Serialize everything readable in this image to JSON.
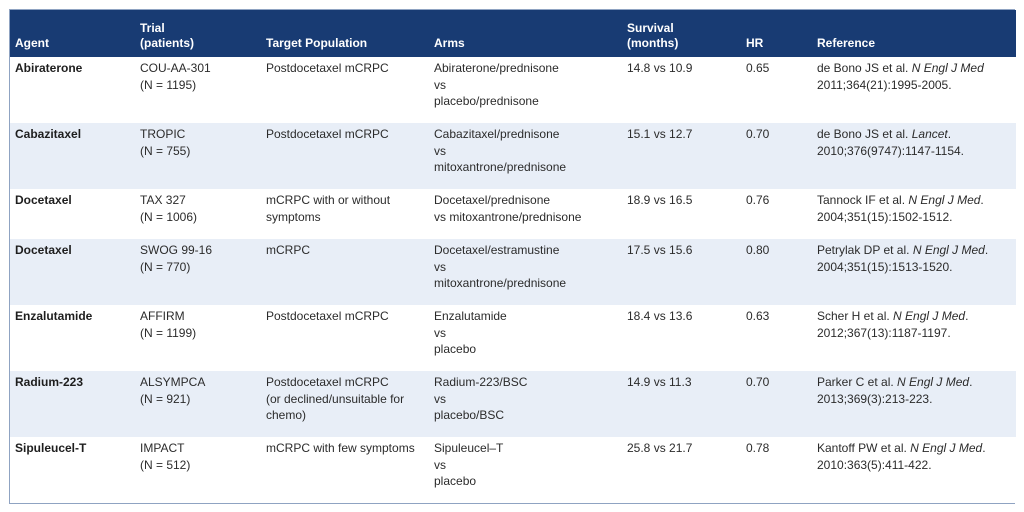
{
  "table": {
    "headers": [
      "Agent",
      "Trial\n(patients)",
      "Target Population",
      "Arms",
      "Survival\n(months)",
      "HR",
      "Reference"
    ],
    "rows": [
      {
        "agent": "Abiraterone",
        "trial": "COU-AA-301\n(N = 1195)",
        "population": "Postdocetaxel mCRPC",
        "arms": "Abiraterone/prednisone\nvs\nplacebo/prednisone",
        "survival": "14.8 vs 10.9",
        "hr": "0.65",
        "ref_author": "de Bono JS et al. ",
        "ref_journal": "N Engl J Med",
        "ref_citation": "2011;364(21):1995-2005."
      },
      {
        "agent": "Cabazitaxel",
        "trial": "TROPIC\n(N = 755)",
        "population": "Postdocetaxel  mCRPC",
        "arms": "Cabazitaxel/prednisone\nvs\nmitoxantrone/prednisone",
        "survival": "15.1 vs 12.7",
        "hr": "0.70",
        "ref_author": "de Bono JS et al. ",
        "ref_journal": "Lancet",
        "ref_citation": ".\n2010;376(9747):1147-1154."
      },
      {
        "agent": "Docetaxel",
        "trial": "TAX 327\n(N = 1006)",
        "population": "mCRPC with or without\nsymptoms",
        "arms": "Docetaxel/prednisone\nvs mitoxantrone/prednisone",
        "survival": "18.9 vs 16.5",
        "hr": "0.76",
        "ref_author": "Tannock IF et al.  ",
        "ref_journal": "N Engl J Med",
        "ref_citation": ".\n2004;351(15):1502-1512."
      },
      {
        "agent": "Docetaxel",
        "trial": "SWOG 99-16\n(N = 770)",
        "population": "mCRPC",
        "arms": "Docetaxel/estramustine\nvs\nmitoxantrone/prednisone",
        "survival": "17.5 vs 15.6",
        "hr": "0.80",
        "ref_author": "Petrylak DP et al. ",
        "ref_journal": "N Engl J Med",
        "ref_citation": ".\n2004;351(15):1513-1520."
      },
      {
        "agent": "Enzalutamide",
        "trial": "AFFIRM\n(N = 1199)",
        "population": "Postdocetaxel mCRPC",
        "arms": "Enzalutamide\nvs\nplacebo",
        "survival": "18.4 vs 13.6",
        "hr": "0.63",
        "ref_author": "Scher H et al. ",
        "ref_journal": "N Engl J Med",
        "ref_citation": ".\n2012;367(13):1187-1197."
      },
      {
        "agent": "Radium-223",
        "trial": "ALSYMPCA\n(N = 921)",
        "population": "Postdocetaxel mCRPC\n(or declined/unsuitable for\nchemo)",
        "arms": "Radium-223/BSC\nvs\nplacebo/BSC",
        "survival": "14.9 vs 11.3",
        "hr": "0.70",
        "ref_author": "Parker C et al.  ",
        "ref_journal": "N Engl J Med",
        "ref_citation": ".\n2013;369(3):213-223."
      },
      {
        "agent": "Sipuleucel-T",
        "trial": "IMPACT\n(N = 512)",
        "population": "mCRPC with few symptoms",
        "arms": "Sipuleucel–T\nvs\nplacebo",
        "survival": "25.8 vs 21.7",
        "hr": "0.78",
        "ref_author": "Kantoff PW et al. ",
        "ref_journal": "N Engl J Med",
        "ref_citation": ".\n2010:363(5):411-422."
      }
    ]
  },
  "colors": {
    "header_bg": "#183b73",
    "row_alt_bg": "#e8eef7",
    "border": "#8fa3c2"
  }
}
